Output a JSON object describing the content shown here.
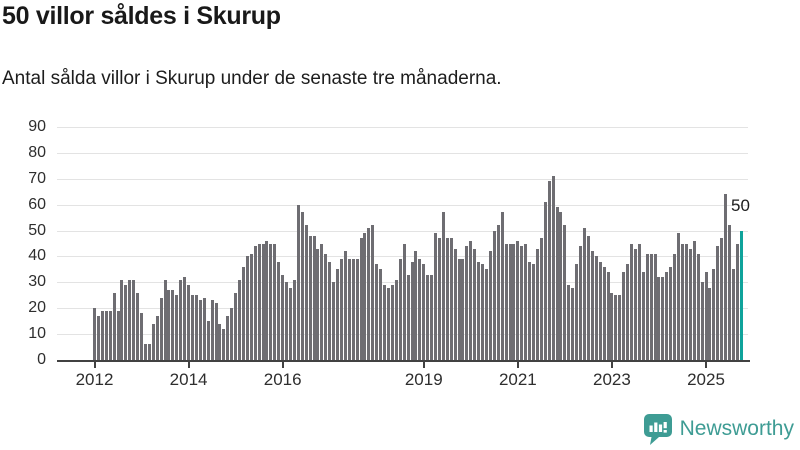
{
  "header": {
    "title": "50 villor såldes i Skurup",
    "subtitle": "Antal sålda villor i Skurup under de senaste tre månaderna."
  },
  "chart_data": {
    "type": "bar",
    "title": "50 villor såldes i Skurup",
    "subtitle": "Antal sålda villor i Skurup under de senaste tre månaderna.",
    "unit": "antal sålda villor (rullande tre månader)",
    "frequency": "monthly",
    "start": "2012-01",
    "values": [
      20,
      17,
      19,
      19,
      19,
      26,
      19,
      31,
      29,
      31,
      31,
      26,
      18,
      6,
      6,
      14,
      17,
      24,
      31,
      27,
      27,
      25,
      31,
      32,
      29,
      25,
      25,
      23,
      24,
      15,
      23,
      22,
      14,
      12,
      17,
      20,
      26,
      31,
      36,
      40,
      41,
      44,
      45,
      45,
      46,
      45,
      45,
      38,
      33,
      30,
      28,
      31,
      60,
      57,
      52,
      48,
      48,
      43,
      45,
      41,
      38,
      30,
      35,
      39,
      42,
      39,
      39,
      39,
      47,
      49,
      51,
      52,
      37,
      35,
      29,
      28,
      29,
      31,
      39,
      45,
      33,
      38,
      42,
      39,
      37,
      33,
      33,
      49,
      47,
      57,
      47,
      47,
      43,
      39,
      39,
      44,
      46,
      43,
      38,
      37,
      35,
      42,
      50,
      52,
      57,
      45,
      45,
      45,
      46,
      44,
      45,
      38,
      37,
      43,
      47,
      61,
      69,
      71,
      59,
      57,
      52,
      29,
      28,
      37,
      44,
      51,
      48,
      42,
      40,
      38,
      36,
      34,
      26,
      25,
      25,
      34,
      37,
      45,
      43,
      45,
      34,
      41,
      41,
      41,
      32,
      32,
      34,
      36,
      41,
      49,
      45,
      45,
      43,
      46,
      41,
      30,
      34,
      28,
      35,
      44,
      47,
      64,
      52,
      35,
      45,
      50
    ],
    "highlight": {
      "index": 165,
      "value": 50,
      "label": "50",
      "color": "#0fa39b"
    },
    "bar_color": "#6e6d72",
    "grid": true,
    "legend": false,
    "ylim": [
      0,
      90
    ],
    "yticks": [
      0,
      10,
      20,
      30,
      40,
      50,
      60,
      70,
      80,
      90
    ],
    "xticks": [
      {
        "label": "2012",
        "index": 0
      },
      {
        "label": "2014",
        "index": 24
      },
      {
        "label": "2016",
        "index": 48
      },
      {
        "label": "2019",
        "index": 84
      },
      {
        "label": "2021",
        "index": 108
      },
      {
        "label": "2023",
        "index": 132
      },
      {
        "label": "2025",
        "index": 156
      }
    ]
  },
  "annotation": {
    "last_value_label": "50"
  },
  "footer": {
    "brand": "Newsworthy",
    "brand_color": "#3E9C94",
    "logo_icon": "speech-bubble-bar-chart-icon"
  }
}
